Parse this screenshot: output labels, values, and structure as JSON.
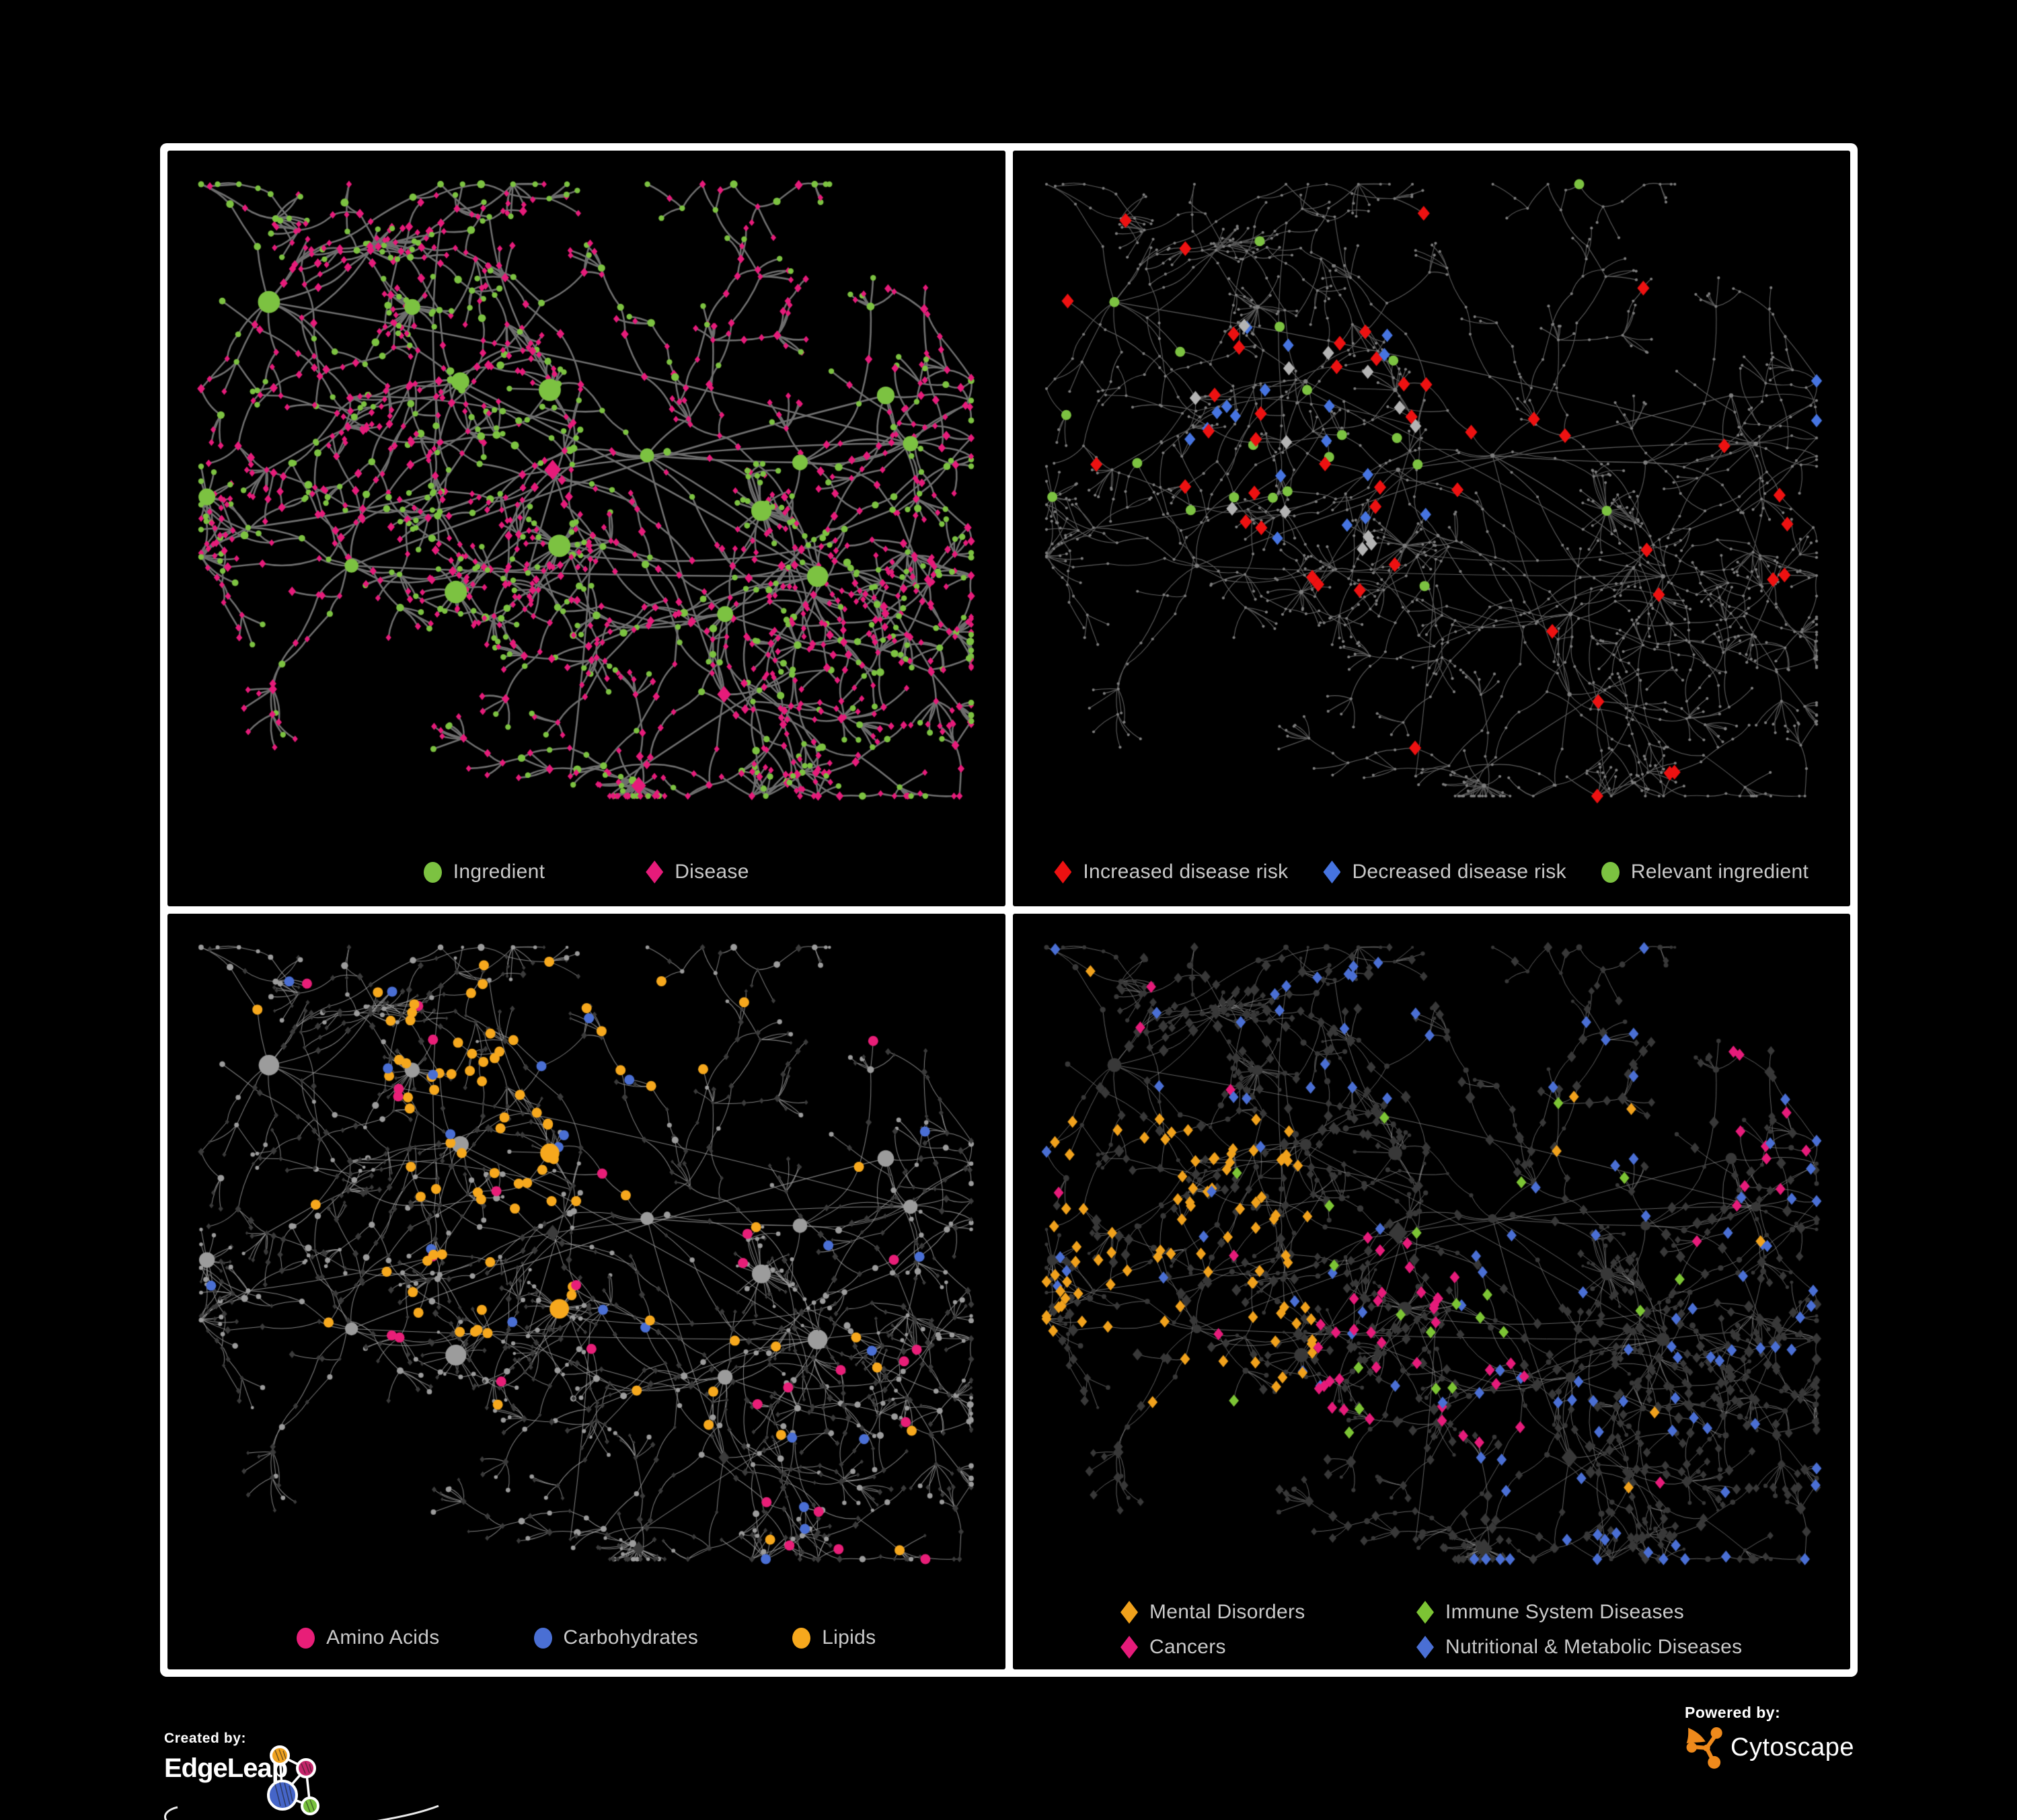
{
  "page": {
    "background": "#000000",
    "frame_color": "#ffffff",
    "legend_text_color": "#c9c9c9"
  },
  "branding": {
    "created_by_label": "Created by:",
    "created_by_name": "EdgeLeap",
    "powered_by_label": "Powered by:",
    "powered_by_name": "Cytoscape",
    "edgeleap_logo_colors": {
      "orange": "#f0a31f",
      "pink": "#c4246a",
      "blue": "#4565c8",
      "green": "#77c13c"
    },
    "cytoscape_logo_color": "#ef8a1c"
  },
  "panels": [
    {
      "id": "ingredient-disease",
      "legend_rows": [
        [
          {
            "label": "Ingredient",
            "shape": "circle",
            "color": "#7cc241"
          },
          {
            "label": "Disease",
            "shape": "diamond",
            "color": "#e61b7a"
          }
        ]
      ],
      "network": {
        "type": "node-link-graph",
        "edge_color": "#6f6f6f",
        "node_colors": {
          "ingredient": "#7cc241",
          "disease": "#e61b7a"
        }
      }
    },
    {
      "id": "disease-risk",
      "legend_rows": [
        [
          {
            "label": "Increased disease risk",
            "shape": "diamond",
            "color": "#ed1111"
          },
          {
            "label": "Decreased disease risk",
            "shape": "diamond",
            "color": "#4674e0"
          },
          {
            "label": "Relevant ingredient",
            "shape": "circle",
            "color": "#7cc241"
          }
        ]
      ],
      "network": {
        "type": "node-link-graph",
        "edge_color": "#5c5c5c",
        "node_colors": {
          "base": "#7e7e7e",
          "increased_risk": "#ed1111",
          "decreased_risk": "#4674e0",
          "relevant_ingredient": "#7cc241",
          "neutral_highlight": "#b3b3b3"
        }
      }
    },
    {
      "id": "nutrient-classes",
      "legend_rows": [
        [
          {
            "label": "Amino Acids",
            "shape": "circle",
            "color": "#e81e78"
          },
          {
            "label": "Carbohydrates",
            "shape": "circle",
            "color": "#4a6fd4"
          },
          {
            "label": "Lipids",
            "shape": "circle",
            "color": "#f6a81d"
          }
        ]
      ],
      "network": {
        "type": "node-link-graph",
        "edge_color": "#9e9e9e",
        "node_colors": {
          "base_ingredient": "#9c9c9c",
          "base_disease": "#3b3b3b",
          "amino_acids": "#e81e78",
          "carbohydrates": "#4a6fd4",
          "lipids": "#f6a81d"
        }
      }
    },
    {
      "id": "disease-categories",
      "legend_rows": [
        [
          {
            "label": "Mental Disorders",
            "shape": "diamond",
            "color": "#f0a11c"
          },
          {
            "label": "Immune System Diseases",
            "shape": "diamond",
            "color": "#7cc434"
          }
        ],
        [
          {
            "label": "Cancers",
            "shape": "diamond",
            "color": "#e61b7a"
          },
          {
            "label": "Nutritional & Metabolic Diseases",
            "shape": "diamond",
            "color": "#4a6fd4"
          }
        ]
      ],
      "network": {
        "type": "node-link-graph",
        "edge_color": "#949494",
        "node_colors": {
          "base": "#383838",
          "mental_disorders": "#f0a11c",
          "immune_system_diseases": "#7cc434",
          "cancers": "#e61b7a",
          "nutritional_metabolic_diseases": "#4a6fd4"
        }
      }
    }
  ]
}
